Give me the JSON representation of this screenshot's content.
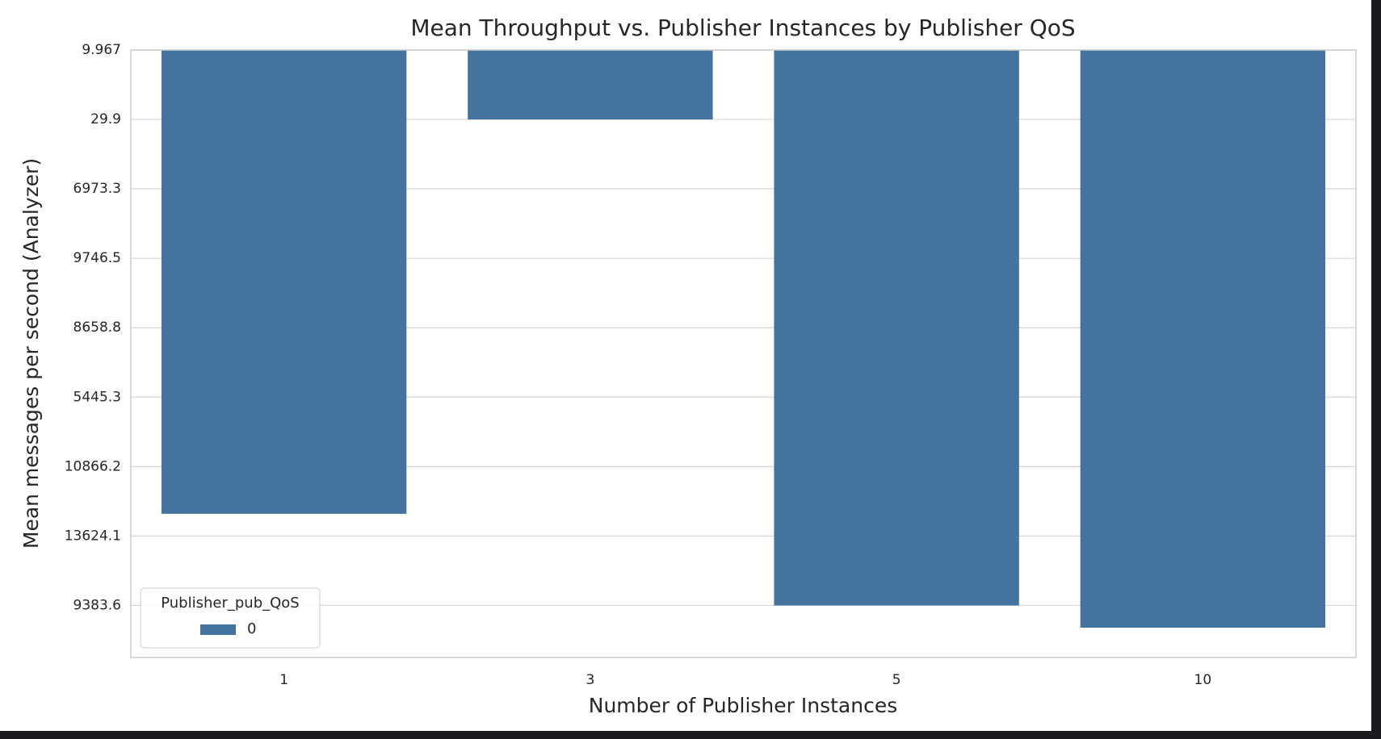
{
  "chart_data": {
    "type": "bar",
    "title": "Mean Throughput vs. Publisher Instances by Publisher QoS",
    "x_label": "Number of Publisher Instances",
    "y_label": "Mean messages per second (Analyzer)",
    "categories": [
      "1",
      "3",
      "5",
      "10"
    ],
    "series": [
      {
        "name": "0",
        "color": "#4573a0",
        "values": [
          6.68,
          1.0,
          8.0,
          8.32
        ]
      }
    ],
    "legend_title": "Publisher_pub_QoS",
    "legend": "lower left",
    "ylim": [
      8.75,
      0
    ],
    "yticks": [
      {
        "value": 0,
        "label": "9.967"
      },
      {
        "value": 1,
        "label": "29.9"
      },
      {
        "value": 2,
        "label": "6973.3"
      },
      {
        "value": 3,
        "label": "9746.5"
      },
      {
        "value": 4,
        "label": "8658.8"
      },
      {
        "value": 5,
        "label": "5445.3"
      },
      {
        "value": 6,
        "label": "10866.2"
      },
      {
        "value": 7,
        "label": "13624.1"
      },
      {
        "value": 8,
        "label": "9383.6"
      }
    ],
    "grid": true
  }
}
